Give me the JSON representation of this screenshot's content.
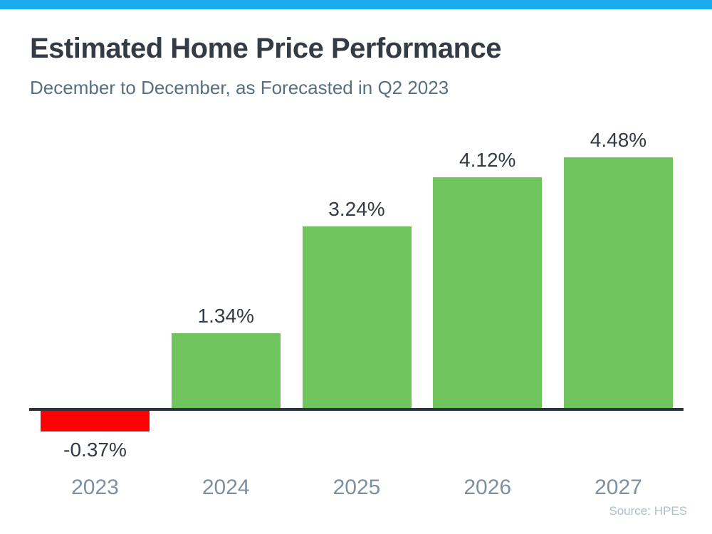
{
  "page": {
    "title": "Estimated Home Price Performance",
    "subtitle": "December to December, as Forecasted in Q2 2023",
    "source": "Source: HPES"
  },
  "colors": {
    "accent_bar": "#18ACEC",
    "positive_bar": "#6FC45D",
    "negative_bar": "#FE0000",
    "title_text": "#333B44",
    "subtitle_text": "#56707F",
    "year_label_text": "#7C90A0",
    "source_text": "#AFBEC8",
    "axis_line": "#2A333C"
  },
  "chart_data": {
    "type": "bar",
    "title": "Estimated Home Price Performance",
    "subtitle": "December to December, as Forecasted in Q2 2023",
    "categories": [
      "2023",
      "2024",
      "2025",
      "2026",
      "2027"
    ],
    "values": [
      -0.37,
      1.34,
      3.24,
      4.12,
      4.48
    ],
    "value_labels": [
      "-0.37%",
      "1.34%",
      "3.24%",
      "4.12%",
      "4.48%"
    ],
    "bar_colors": [
      "#FE0000",
      "#6FC45D",
      "#6FC45D",
      "#6FC45D",
      "#6FC45D"
    ],
    "xlabel": "",
    "ylabel": "",
    "ylim": [
      -1,
      5
    ],
    "grid": false,
    "legend": false,
    "baseline": 0,
    "source": "Source: HPES"
  }
}
